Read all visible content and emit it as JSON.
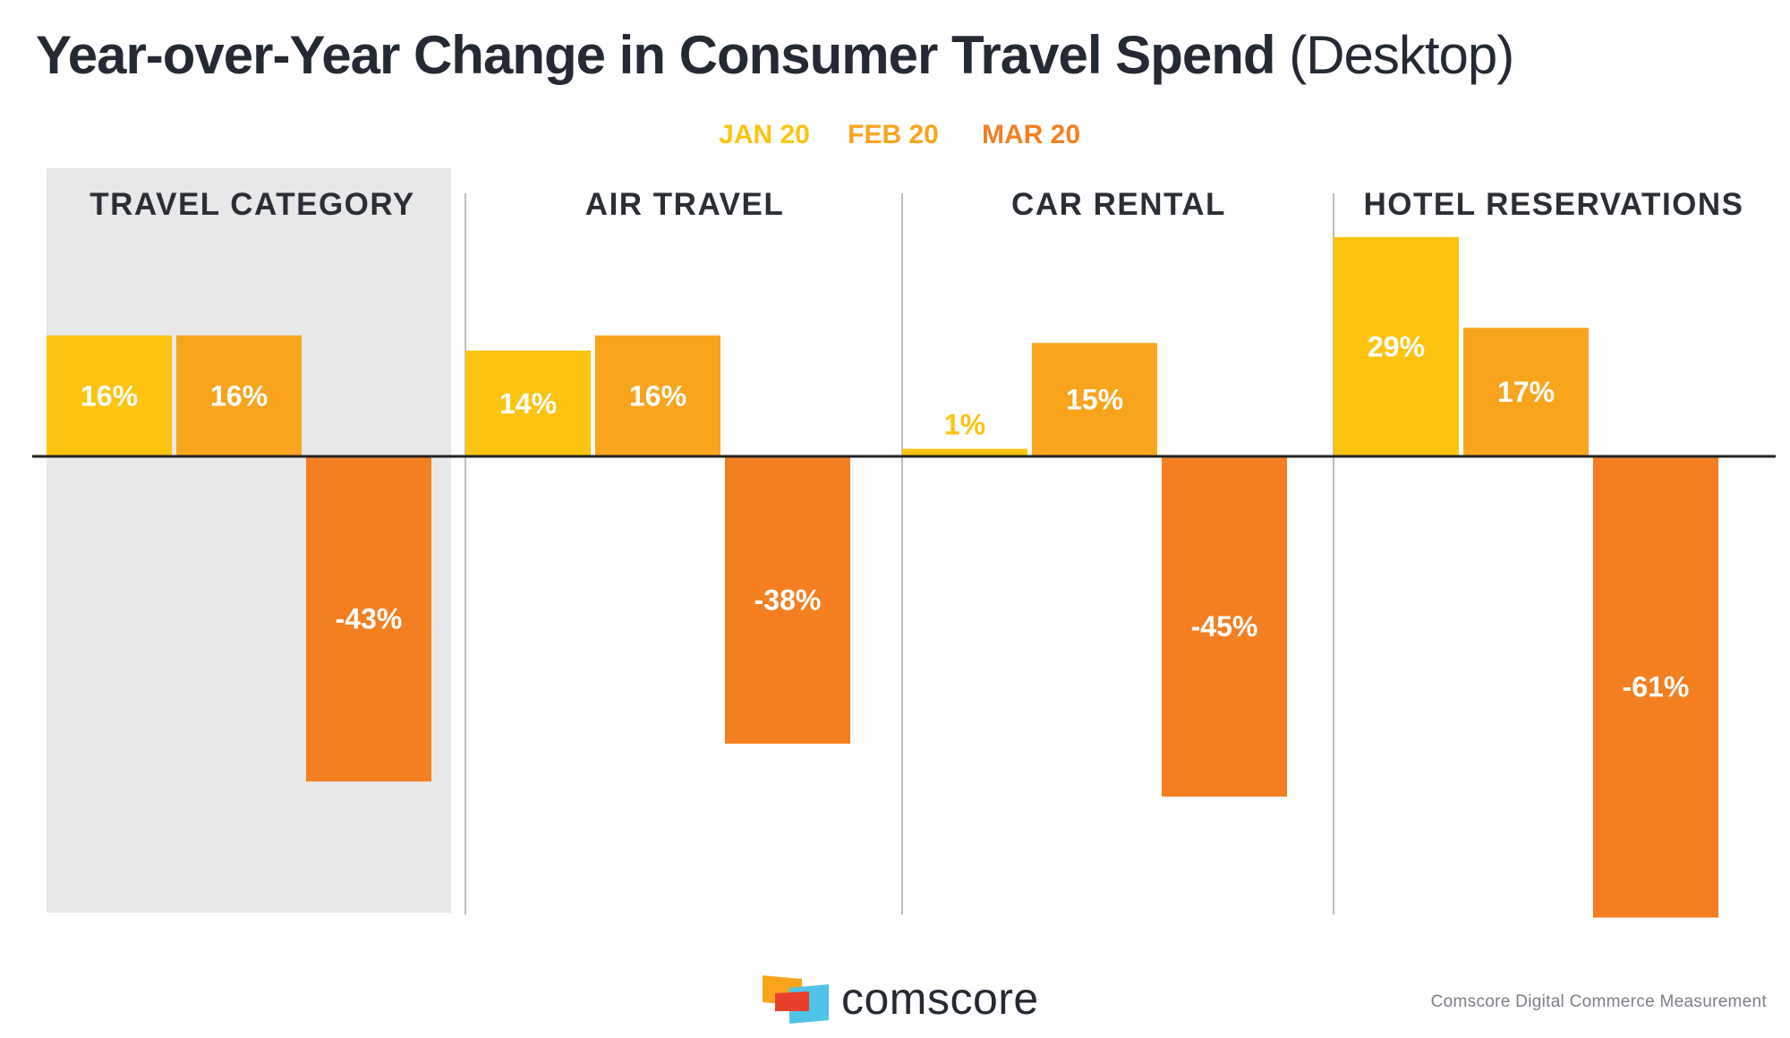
{
  "title": {
    "main": "Year-over-Year Change in Consumer Travel Spend",
    "sub": "(Desktop)"
  },
  "colors": {
    "jan": "#fcc410",
    "feb": "#f8a51d",
    "mar": "#f47f21",
    "highlight_panel": "#e8e8e8",
    "text_dark": "#2a2f36",
    "divider": "#bdbdbd"
  },
  "chart_data": {
    "type": "bar",
    "categories": [
      "TRAVEL CATEGORY",
      "AIR TRAVEL",
      "CAR RENTAL",
      "HOTEL RESERVATIONS"
    ],
    "series": [
      {
        "name": "JAN 20",
        "values": [
          16,
          14,
          1,
          29
        ],
        "labels": [
          "16%",
          "14%",
          "1%",
          "29%"
        ]
      },
      {
        "name": "FEB 20",
        "values": [
          16,
          16,
          15,
          17
        ],
        "labels": [
          "16%",
          "16%",
          "15%",
          "17%"
        ]
      },
      {
        "name": "MAR 20",
        "values": [
          -43,
          -38,
          -45,
          -61
        ],
        "labels": [
          "-43%",
          "-38%",
          "-45%",
          "-61%"
        ]
      }
    ],
    "unit": "%",
    "legend_position": "top-center",
    "highlighted_category": "TRAVEL CATEGORY",
    "ylim": [
      -61,
      29
    ]
  },
  "footer": {
    "brand": "comscore",
    "source": "Comscore Digital Commerce Measurement"
  }
}
